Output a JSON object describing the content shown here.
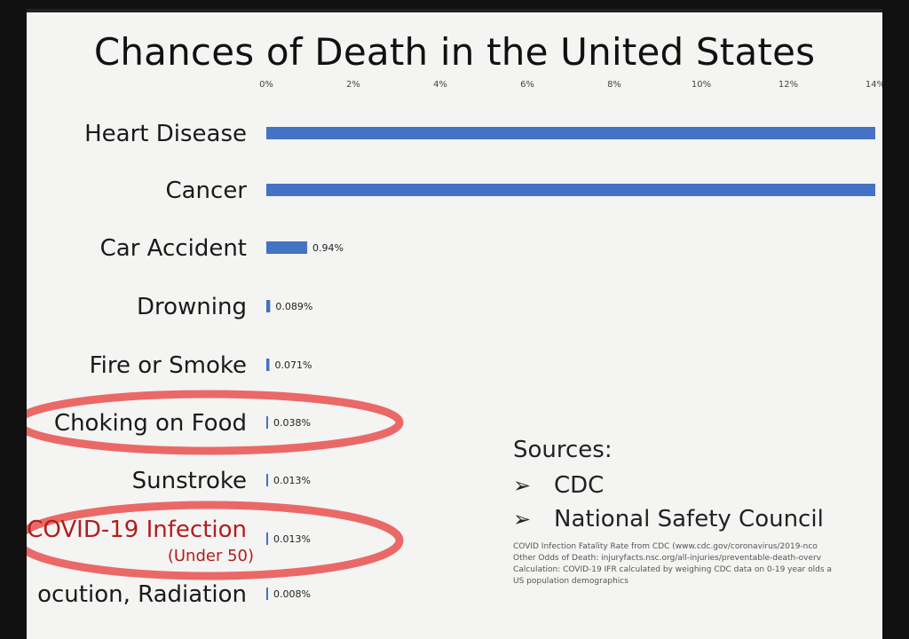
{
  "title": "Chances of Death in the United States",
  "chart_data": {
    "type": "bar",
    "orientation": "horizontal",
    "title": "Chances of Death in the United States",
    "x_ticks": [
      "0%",
      "2%",
      "4%",
      "6%",
      "8%",
      "10%",
      "12%",
      "14%"
    ],
    "xlim": [
      0,
      14
    ],
    "unit": "%",
    "grid": false,
    "categories": [
      "Heart Disease",
      "Cancer",
      "Car Accident",
      "Drowning",
      "Fire or Smoke",
      "Choking on Food",
      "Sunstroke",
      "COVID-19 Infection",
      "ocution, Radiation"
    ],
    "category_subtitles": [
      "",
      "",
      "",
      "",
      "",
      "",
      "",
      "(Under 50)",
      ""
    ],
    "values": [
      14.2,
      14.0,
      0.94,
      0.089,
      0.071,
      0.038,
      0.013,
      0.013,
      0.008
    ],
    "data_labels": [
      "",
      "",
      "0.94%",
      "0.089%",
      "0.071%",
      "0.038%",
      "0.013%",
      "0.013%",
      "0.008%"
    ],
    "circled": [
      "Choking on Food",
      "COVID-19 Infection"
    ],
    "bar_color": "#4472c4",
    "annotation_color": "#e8504e"
  },
  "sources": {
    "title": "Sources:",
    "items": [
      "CDC",
      "National Safety Council"
    ],
    "arrow": "➢",
    "notes": [
      "COVID Infection Fatality Rate from CDC (www.cdc.gov/coronavirus/2019-nco",
      "Other Odds of Death: injuryfacts.nsc.org/all-injuries/preventable-death-overv",
      "Calculation: COVID-19 IFR calculated by weighing CDC data on 0-19 year olds a",
      "US population demographics"
    ]
  }
}
